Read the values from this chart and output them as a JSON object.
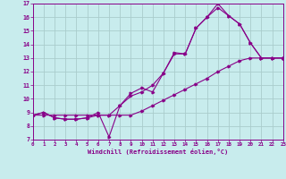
{
  "background_color": "#c8eced",
  "line_color": "#880088",
  "grid_color": "#aacccc",
  "xlabel": "Windchill (Refroidissement éolien,°C)",
  "xlim": [
    0,
    23
  ],
  "ylim": [
    7,
    17
  ],
  "xticks": [
    0,
    1,
    2,
    3,
    4,
    5,
    6,
    7,
    8,
    9,
    10,
    11,
    12,
    13,
    14,
    15,
    16,
    17,
    18,
    19,
    20,
    21,
    22,
    23
  ],
  "yticks": [
    7,
    8,
    9,
    10,
    11,
    12,
    13,
    14,
    15,
    16,
    17
  ],
  "line1_x": [
    0,
    1,
    2,
    3,
    4,
    5,
    6,
    7,
    8,
    9,
    10,
    11,
    12,
    13,
    14,
    15,
    16,
    17,
    18,
    19,
    20,
    21,
    22,
    23
  ],
  "line1_y": [
    8.8,
    8.8,
    8.8,
    8.8,
    8.8,
    8.8,
    8.8,
    8.8,
    8.8,
    8.8,
    9.1,
    9.5,
    9.9,
    10.3,
    10.7,
    11.1,
    11.5,
    12.0,
    12.4,
    12.8,
    13.0,
    13.0,
    13.0,
    13.0
  ],
  "line2_x": [
    0,
    1,
    2,
    3,
    4,
    5,
    6,
    7,
    8,
    9,
    10,
    11,
    12,
    13,
    14,
    15,
    16,
    17,
    18,
    19,
    20,
    21,
    22,
    23
  ],
  "line2_y": [
    8.8,
    9.0,
    8.6,
    8.5,
    8.5,
    8.6,
    8.8,
    8.8,
    9.5,
    10.2,
    10.5,
    11.0,
    11.9,
    13.3,
    13.3,
    15.2,
    16.0,
    16.7,
    16.1,
    15.5,
    14.1,
    13.0,
    13.0,
    13.0
  ],
  "line3_x": [
    0,
    1,
    2,
    3,
    4,
    5,
    6,
    7,
    8,
    9,
    10,
    11,
    12,
    13,
    14,
    15,
    16,
    17,
    18,
    19,
    20,
    21,
    22,
    23
  ],
  "line3_y": [
    8.8,
    9.0,
    8.6,
    8.5,
    8.5,
    8.6,
    9.0,
    7.2,
    9.5,
    10.4,
    10.8,
    10.5,
    11.9,
    13.4,
    13.3,
    15.2,
    16.0,
    17.0,
    16.1,
    15.5,
    14.1,
    13.0,
    13.0,
    13.0
  ]
}
